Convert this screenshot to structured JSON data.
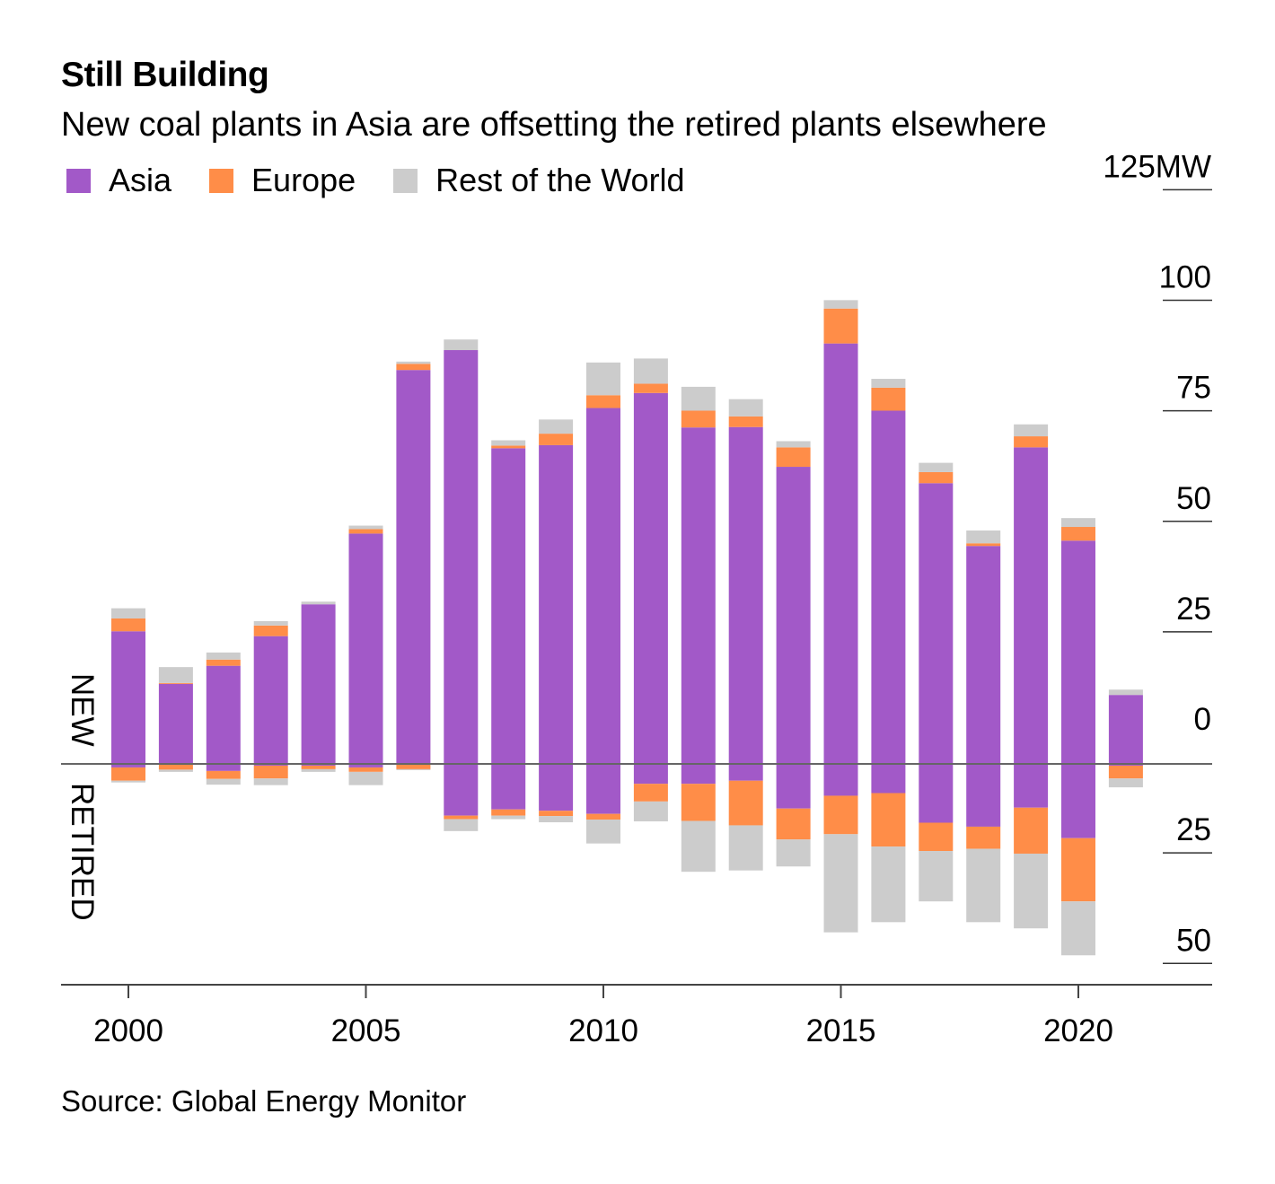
{
  "title": "Still Building",
  "subtitle": "New coal plants in Asia are offsetting the retired plants elsewhere",
  "source": "Source: Global Energy Monitor",
  "legend": [
    {
      "name": "Asia",
      "color": "#a259c8"
    },
    {
      "name": "Europe",
      "color": "#ff8d48"
    },
    {
      "name": "Rest of the World",
      "color": "#cccccc"
    }
  ],
  "side_labels": {
    "new": "NEW",
    "retired": "RETIRED"
  },
  "chart_data": {
    "type": "bar",
    "stacked": true,
    "title": "Still Building",
    "unit": "MW",
    "categories": [
      2000,
      2001,
      2002,
      2003,
      2004,
      2005,
      2006,
      2007,
      2008,
      2009,
      2010,
      2011,
      2012,
      2013,
      2014,
      2015,
      2016,
      2017,
      2018,
      2019,
      2020,
      2021
    ],
    "x_ticks": [
      "2000",
      "2005",
      "2010",
      "2015",
      "2020"
    ],
    "y_ticks": [
      {
        "value": 125,
        "label": "125MW"
      },
      {
        "value": 100,
        "label": "100"
      },
      {
        "value": 75,
        "label": "75"
      },
      {
        "value": 50,
        "label": "50"
      },
      {
        "value": 25,
        "label": "25"
      },
      {
        "value": 0,
        "label": "0"
      },
      {
        "value": -25,
        "label": "25"
      },
      {
        "value": -50,
        "label": "50"
      }
    ],
    "ylim": [
      -50,
      125
    ],
    "new": [
      {
        "name": "Asia",
        "values": [
          30.0,
          18.1,
          22.2,
          28.9,
          36.1,
          52.1,
          89.1,
          93.6,
          71.4,
          72.1,
          80.5,
          83.9,
          76.1,
          76.2,
          67.2,
          95.1,
          79.9,
          63.5,
          49.3,
          71.6,
          50.5,
          15.6
        ]
      },
      {
        "name": "Europe",
        "values": [
          2.9,
          0.2,
          1.4,
          2.4,
          0,
          1.0,
          1.4,
          0,
          0.6,
          2.6,
          2.9,
          2.1,
          3.8,
          2.4,
          4.4,
          7.9,
          5.2,
          2.5,
          0.6,
          2.5,
          3.1,
          0
        ]
      },
      {
        "name": "Rest of the World",
        "values": [
          2.3,
          3.6,
          1.6,
          1.0,
          0.6,
          0.8,
          0.5,
          2.4,
          1.2,
          3.2,
          7.4,
          5.7,
          5.4,
          3.9,
          1.4,
          1.9,
          2.0,
          2.1,
          2.9,
          2.7,
          2.0,
          1.2
        ]
      }
    ],
    "retired": [
      {
        "name": "Asia",
        "values": [
          0.8,
          0.2,
          1.6,
          0.4,
          0.4,
          0.8,
          0.2,
          11.7,
          10.3,
          10.6,
          11.3,
          4.5,
          4.5,
          3.8,
          10.1,
          7.2,
          6.6,
          13.3,
          14.2,
          9.9,
          16.8,
          0.4
        ]
      },
      {
        "name": "Europe",
        "values": [
          3.0,
          1.1,
          1.8,
          2.9,
          0.8,
          1.0,
          1.0,
          0.8,
          1.4,
          1.2,
          1.3,
          4.0,
          8.4,
          10.1,
          7.0,
          8.7,
          12.1,
          6.4,
          5.0,
          10.4,
          14.3,
          2.9
        ]
      },
      {
        "name": "Rest of the World",
        "values": [
          0.4,
          0.5,
          1.3,
          1.5,
          0.6,
          3.0,
          0.2,
          2.7,
          0.8,
          1.4,
          5.4,
          4.5,
          11.5,
          10.2,
          6.1,
          22.2,
          17.1,
          11.4,
          16.6,
          16.9,
          12.2,
          2.0
        ]
      }
    ]
  }
}
